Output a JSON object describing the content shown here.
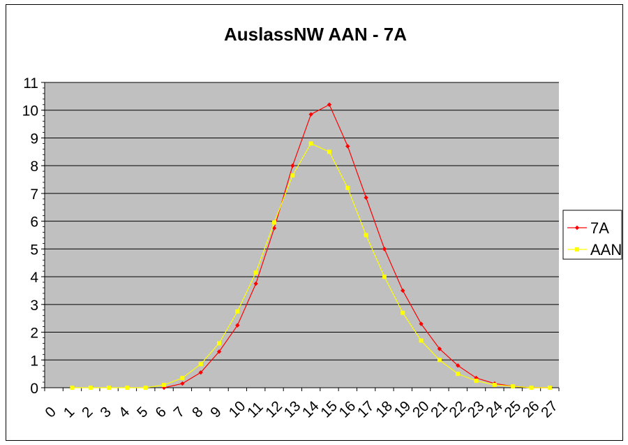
{
  "chart_data": {
    "type": "line",
    "title": "AuslassNW AAN - 7A",
    "xlabel": "",
    "ylabel": "",
    "ylim": [
      0,
      11
    ],
    "yticks": [
      "0",
      "1",
      "2",
      "3",
      "4",
      "5",
      "6",
      "7",
      "8",
      "9",
      "10",
      "11"
    ],
    "x_categories": [
      "0",
      "1",
      "2",
      "3",
      "4",
      "5",
      "6",
      "7",
      "8",
      "9",
      "10",
      "11",
      "12",
      "13",
      "14",
      "15",
      "16",
      "17",
      "18",
      "19",
      "20",
      "21",
      "22",
      "23",
      "24",
      "25",
      "26",
      "27"
    ],
    "grid": "horizontal",
    "legend_position": "right",
    "plot_background": "#c0c0c0",
    "series": [
      {
        "name": "7A",
        "color": "#ff0000",
        "marker": "diamond",
        "x": [
          6,
          7,
          8,
          9,
          10,
          11,
          12,
          13,
          14,
          15,
          16,
          17,
          18,
          19,
          20,
          21,
          22,
          23,
          24,
          25,
          26,
          27
        ],
        "values": [
          0.0,
          0.15,
          0.55,
          1.3,
          2.25,
          3.75,
          5.75,
          8.0,
          9.85,
          10.2,
          8.7,
          6.85,
          5.0,
          3.5,
          2.3,
          1.4,
          0.8,
          0.35,
          0.15,
          0.05,
          0.0,
          0.0
        ]
      },
      {
        "name": "AAN",
        "color": "#ffff00",
        "marker": "square",
        "x": [
          1,
          2,
          3,
          4,
          5,
          6,
          7,
          8,
          9,
          10,
          11,
          12,
          13,
          14,
          15,
          16,
          17,
          18,
          19,
          20,
          21,
          22,
          23,
          24,
          25,
          26,
          27
        ],
        "values": [
          0,
          0,
          0,
          0,
          0,
          0.1,
          0.35,
          0.85,
          1.6,
          2.75,
          4.15,
          5.95,
          7.65,
          8.8,
          8.5,
          7.2,
          5.5,
          4.0,
          2.7,
          1.7,
          1.0,
          0.5,
          0.25,
          0.1,
          0.05,
          0.0,
          0.0
        ]
      }
    ]
  }
}
